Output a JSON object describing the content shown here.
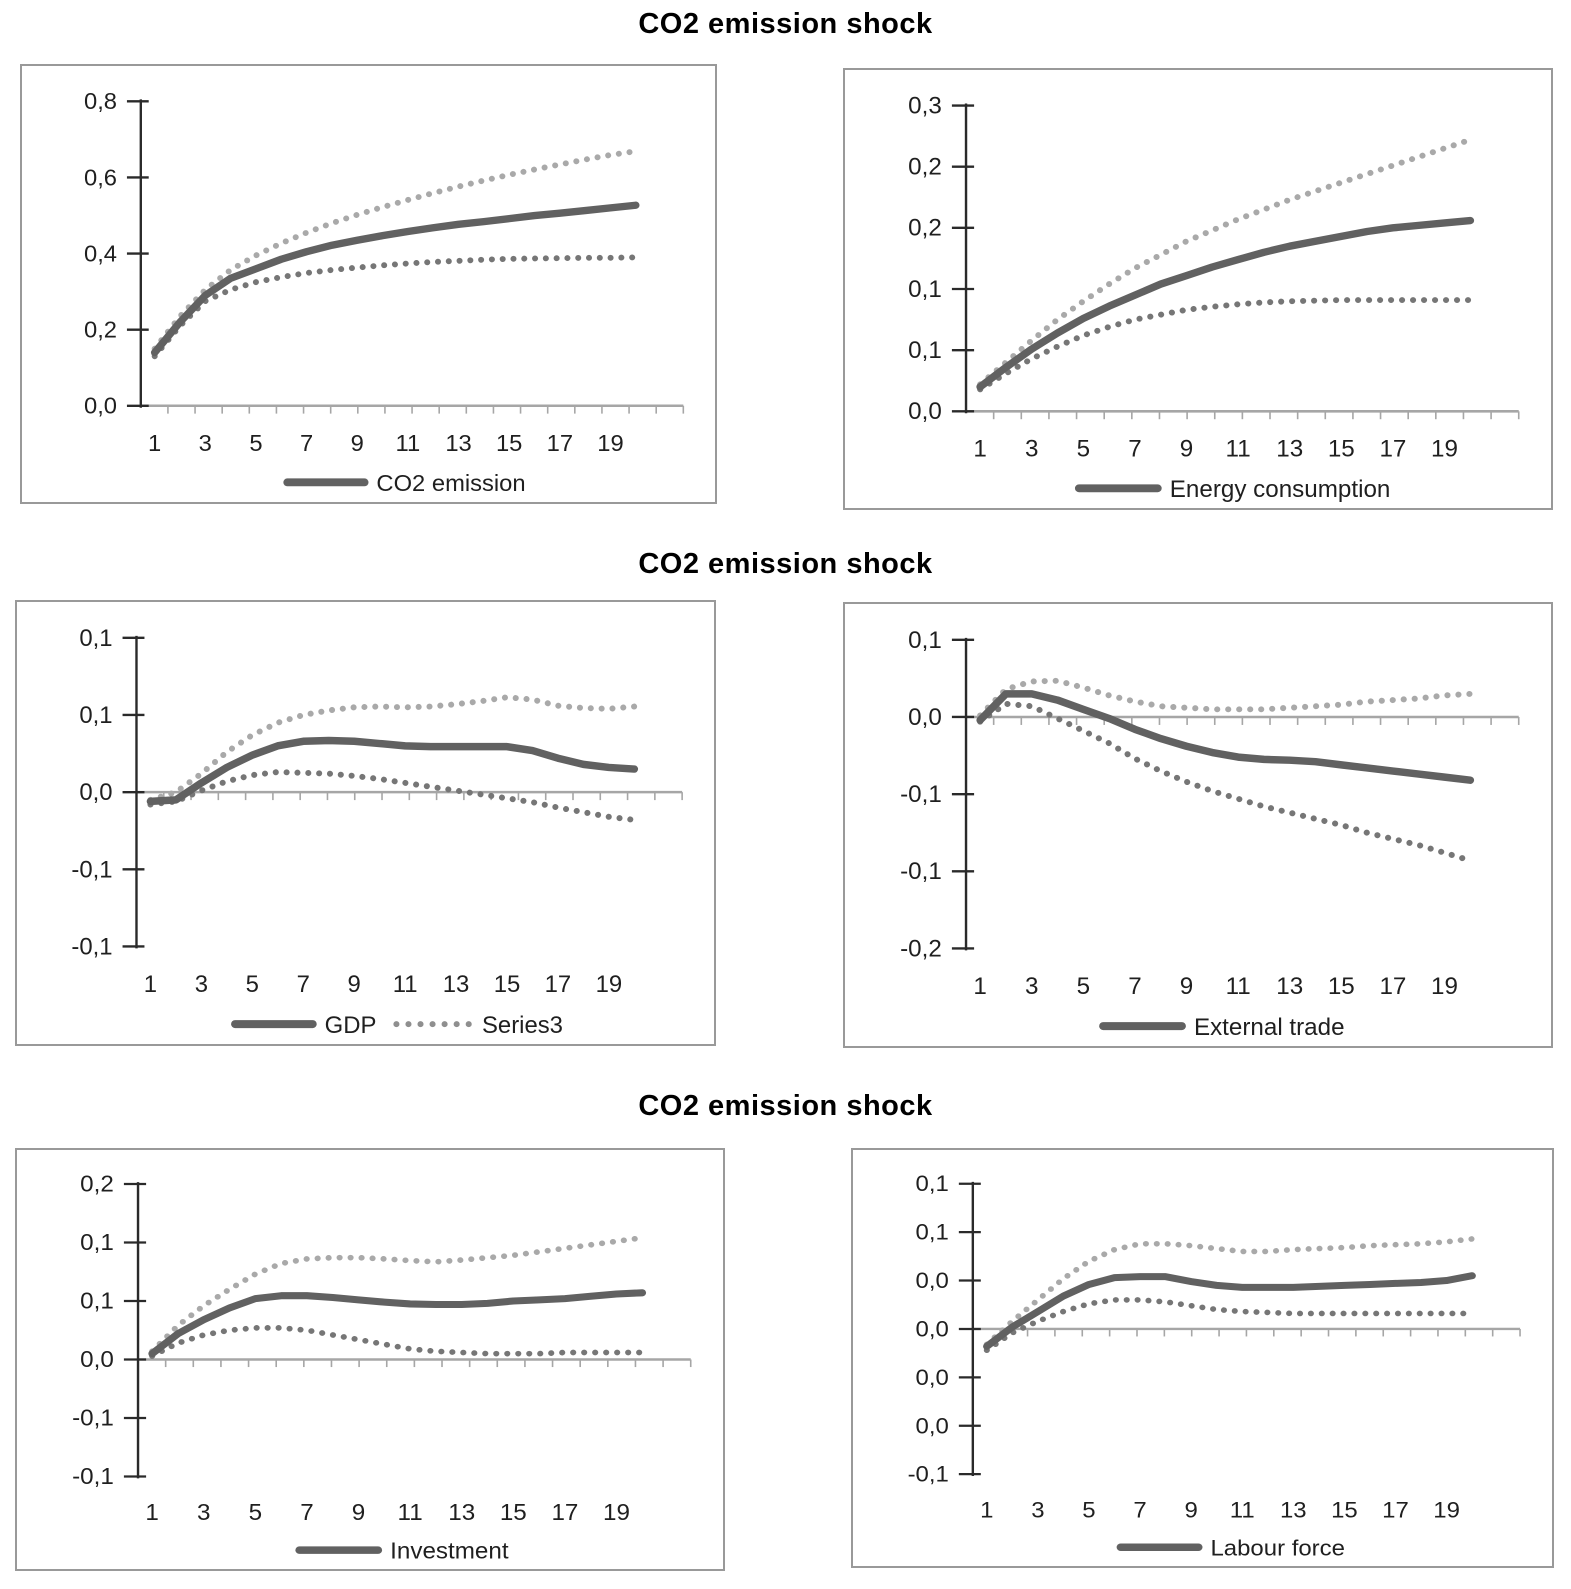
{
  "figure": {
    "background": "#ffffff"
  },
  "row_titles": [
    "CO2 emission shock",
    "CO2 emission shock",
    "CO2 emission shock"
  ],
  "colors": {
    "title_text": "#000000",
    "axis_text": "#1f1f1f",
    "y_axis_line": "#2a2a2a",
    "category_axis_line": "#a6a6a6",
    "panel_border": "#999999",
    "solid_series": "#616161",
    "upper_band": "#a9a9a9",
    "lower_band": "#767676",
    "legend_dotted_marker": "#8f8f8f"
  },
  "x_categories": [
    1,
    2,
    3,
    4,
    5,
    6,
    7,
    8,
    9,
    10,
    11,
    12,
    13,
    14,
    15,
    16,
    17,
    18,
    19,
    20
  ],
  "x_tick_labels": [
    "1",
    "3",
    "5",
    "7",
    "9",
    "11",
    "13",
    "15",
    "17",
    "19"
  ],
  "chart_data": [
    {
      "type": "line",
      "panel": "top-left",
      "row_title": "CO2 emission shock",
      "legend": [
        {
          "label": "CO2 emission",
          "marker": "solid"
        }
      ],
      "y_tick_labels": [
        "0,8",
        "0,6",
        "0,4",
        "0,2",
        "0,0"
      ],
      "y_tick_values": [
        0.8,
        0.6,
        0.4,
        0.2,
        0.0
      ],
      "ylim": [
        0.0,
        0.8
      ],
      "grid": false,
      "legend_position": "bottom",
      "series": [
        {
          "name": "CO2 emission",
          "role": "mean",
          "style": "solid",
          "values": [
            0.14,
            0.22,
            0.29,
            0.335,
            0.36,
            0.385,
            0.405,
            0.422,
            0.435,
            0.447,
            0.458,
            0.468,
            0.477,
            0.484,
            0.492,
            0.5,
            0.506,
            0.513,
            0.52,
            0.527
          ]
        },
        {
          "name": "upper confidence band",
          "role": "upper",
          "style": "dotted",
          "values": [
            0.15,
            0.235,
            0.305,
            0.357,
            0.395,
            0.427,
            0.455,
            0.48,
            0.502,
            0.522,
            0.541,
            0.559,
            0.576,
            0.592,
            0.607,
            0.621,
            0.634,
            0.647,
            0.659,
            0.669
          ]
        },
        {
          "name": "lower confidence band",
          "role": "lower",
          "style": "dotted",
          "values": [
            0.13,
            0.21,
            0.275,
            0.305,
            0.325,
            0.338,
            0.349,
            0.357,
            0.363,
            0.369,
            0.374,
            0.378,
            0.381,
            0.384,
            0.386,
            0.387,
            0.388,
            0.389,
            0.389,
            0.39
          ]
        }
      ]
    },
    {
      "type": "line",
      "panel": "top-right",
      "row_title": "CO2 emission shock",
      "legend": [
        {
          "label": "Energy consumption",
          "marker": "solid"
        }
      ],
      "y_tick_labels": [
        "0,3",
        "0,2",
        "0,2",
        "0,1",
        "0,1",
        "0,0"
      ],
      "y_tick_values": [
        0.25,
        0.2,
        0.15,
        0.1,
        0.05,
        0.0
      ],
      "ylim": [
        0.0,
        0.25
      ],
      "grid": false,
      "legend_position": "bottom",
      "series": [
        {
          "name": "Energy consumption",
          "role": "mean",
          "style": "solid",
          "values": [
            0.02,
            0.036,
            0.051,
            0.064,
            0.076,
            0.086,
            0.095,
            0.104,
            0.111,
            0.118,
            0.124,
            0.13,
            0.135,
            0.139,
            0.143,
            0.147,
            0.15,
            0.152,
            0.154,
            0.156
          ]
        },
        {
          "name": "upper confidence band",
          "role": "upper",
          "style": "dotted",
          "values": [
            0.022,
            0.04,
            0.058,
            0.075,
            0.09,
            0.104,
            0.117,
            0.128,
            0.139,
            0.148,
            0.157,
            0.165,
            0.173,
            0.18,
            0.187,
            0.194,
            0.201,
            0.208,
            0.215,
            0.222
          ]
        },
        {
          "name": "lower confidence band",
          "role": "lower",
          "style": "dotted",
          "values": [
            0.018,
            0.031,
            0.043,
            0.053,
            0.062,
            0.069,
            0.075,
            0.079,
            0.083,
            0.0855,
            0.0875,
            0.089,
            0.09,
            0.0905,
            0.091,
            0.091,
            0.091,
            0.091,
            0.091,
            0.091
          ]
        }
      ]
    },
    {
      "type": "line",
      "panel": "middle-left",
      "row_title": "CO2 emission shock",
      "legend": [
        {
          "label": "GDP",
          "marker": "solid"
        },
        {
          "label": "Series3",
          "marker": "dotted"
        }
      ],
      "y_tick_labels": [
        "0,1",
        "0,1",
        "0,0",
        "-0,1",
        "-0,1"
      ],
      "y_tick_values": [
        0.1,
        0.05,
        0.0,
        -0.05,
        -0.1
      ],
      "ylim": [
        -0.1,
        0.1
      ],
      "grid": false,
      "legend_position": "bottom",
      "series": [
        {
          "name": "GDP",
          "role": "mean",
          "style": "solid",
          "values": [
            -0.006,
            -0.005,
            0.006,
            0.016,
            0.024,
            0.03,
            0.033,
            0.0335,
            0.033,
            0.0315,
            0.03,
            0.0295,
            0.0295,
            0.0295,
            0.0295,
            0.027,
            0.022,
            0.018,
            0.016,
            0.015
          ]
        },
        {
          "name": "upper confidence band",
          "role": "upper",
          "style": "dotted",
          "values": [
            -0.005,
            0.0,
            0.012,
            0.026,
            0.037,
            0.045,
            0.05,
            0.053,
            0.055,
            0.0555,
            0.055,
            0.0555,
            0.057,
            0.059,
            0.0615,
            0.06,
            0.056,
            0.0545,
            0.054,
            0.0555
          ]
        },
        {
          "name": "Series3 (lower confidence band)",
          "role": "lower",
          "style": "dotted",
          "values": [
            -0.008,
            -0.006,
            0.001,
            0.007,
            0.011,
            0.013,
            0.0125,
            0.012,
            0.0105,
            0.0085,
            0.006,
            0.0035,
            0.001,
            -0.0015,
            -0.004,
            -0.0065,
            -0.01,
            -0.013,
            -0.016,
            -0.018
          ]
        }
      ]
    },
    {
      "type": "line",
      "panel": "middle-right",
      "row_title": "CO2 emission shock",
      "legend": [
        {
          "label": "External trade",
          "marker": "solid"
        }
      ],
      "y_tick_labels": [
        "0,1",
        "0,0",
        "-0,1",
        "-0,1",
        "-0,2"
      ],
      "y_tick_values": [
        0.05,
        0.0,
        -0.05,
        -0.1,
        -0.15
      ],
      "ylim": [
        -0.15,
        0.05
      ],
      "grid": false,
      "legend_position": "bottom",
      "series": [
        {
          "name": "External trade",
          "role": "mean",
          "style": "solid",
          "values": [
            -0.002,
            0.015,
            0.015,
            0.011,
            0.005,
            -0.001,
            -0.008,
            -0.014,
            -0.019,
            -0.023,
            -0.026,
            -0.0275,
            -0.028,
            -0.029,
            -0.031,
            -0.033,
            -0.035,
            -0.037,
            -0.039,
            -0.041
          ]
        },
        {
          "name": "upper confidence band",
          "role": "upper",
          "style": "dotted",
          "values": [
            0.001,
            0.018,
            0.023,
            0.0235,
            0.019,
            0.014,
            0.01,
            0.007,
            0.006,
            0.005,
            0.005,
            0.005,
            0.006,
            0.007,
            0.008,
            0.01,
            0.011,
            0.012,
            0.014,
            0.015
          ]
        },
        {
          "name": "lower confidence band",
          "role": "lower",
          "style": "dotted",
          "values": [
            -0.003,
            0.0085,
            0.007,
            -0.001,
            -0.009,
            -0.017,
            -0.027,
            -0.035,
            -0.042,
            -0.048,
            -0.053,
            -0.058,
            -0.062,
            -0.066,
            -0.07,
            -0.075,
            -0.079,
            -0.083,
            -0.088,
            -0.093
          ]
        }
      ]
    },
    {
      "type": "line",
      "panel": "bottom-left",
      "row_title": "CO2 emission shock",
      "legend": [
        {
          "label": "Investment",
          "marker": "solid"
        }
      ],
      "y_tick_labels": [
        "0,2",
        "0,1",
        "0,1",
        "0,0",
        "-0,1",
        "-0,1"
      ],
      "y_tick_values": [
        0.15,
        0.1,
        0.05,
        0.0,
        -0.05,
        -0.1
      ],
      "ylim": [
        -0.1,
        0.15
      ],
      "grid": false,
      "legend_position": "bottom",
      "series": [
        {
          "name": "Investment",
          "role": "mean",
          "style": "solid",
          "values": [
            0.005,
            0.022,
            0.034,
            0.044,
            0.052,
            0.0545,
            0.0545,
            0.053,
            0.051,
            0.049,
            0.0475,
            0.047,
            0.047,
            0.048,
            0.05,
            0.051,
            0.052,
            0.054,
            0.056,
            0.057
          ]
        },
        {
          "name": "upper confidence band",
          "role": "upper",
          "style": "dotted",
          "values": [
            0.007,
            0.029,
            0.046,
            0.06,
            0.073,
            0.082,
            0.086,
            0.087,
            0.087,
            0.086,
            0.0845,
            0.0835,
            0.085,
            0.087,
            0.089,
            0.092,
            0.095,
            0.098,
            0.101,
            0.104
          ]
        },
        {
          "name": "lower confidence band",
          "role": "lower",
          "style": "dotted",
          "values": [
            0.003,
            0.014,
            0.021,
            0.025,
            0.027,
            0.027,
            0.025,
            0.021,
            0.017,
            0.013,
            0.009,
            0.007,
            0.006,
            0.005,
            0.005,
            0.005,
            0.006,
            0.006,
            0.006,
            0.006
          ]
        }
      ]
    },
    {
      "type": "line",
      "panel": "bottom-right",
      "row_title": "CO2 emission shock",
      "legend": [
        {
          "label": "Labour force",
          "marker": "solid"
        }
      ],
      "y_tick_labels": [
        "0,1",
        "0,1",
        "0,0",
        "0,0",
        "0,0",
        "0,0",
        "-0,1"
      ],
      "y_tick_values": [
        0.075,
        0.05,
        0.025,
        0.0,
        -0.025,
        -0.05,
        -0.075
      ],
      "ylim": [
        -0.075,
        0.075
      ],
      "grid": false,
      "legend_position": "bottom",
      "series": [
        {
          "name": "Labour force",
          "role": "mean",
          "style": "solid",
          "values": [
            -0.009,
            0.001,
            0.009,
            0.017,
            0.023,
            0.0265,
            0.027,
            0.027,
            0.0245,
            0.0225,
            0.0215,
            0.0215,
            0.0215,
            0.022,
            0.0225,
            0.023,
            0.0235,
            0.024,
            0.025,
            0.0275
          ]
        },
        {
          "name": "upper confidence band",
          "role": "upper",
          "style": "dotted",
          "values": [
            -0.008,
            0.004,
            0.015,
            0.026,
            0.035,
            0.041,
            0.044,
            0.044,
            0.043,
            0.0415,
            0.04,
            0.04,
            0.041,
            0.0415,
            0.042,
            0.043,
            0.0435,
            0.044,
            0.045,
            0.0465
          ]
        },
        {
          "name": "lower confidence band",
          "role": "lower",
          "style": "dotted",
          "values": [
            -0.011,
            -0.002,
            0.004,
            0.009,
            0.013,
            0.015,
            0.015,
            0.014,
            0.012,
            0.01,
            0.009,
            0.0085,
            0.008,
            0.008,
            0.008,
            0.008,
            0.008,
            0.008,
            0.008,
            0.008
          ]
        }
      ]
    }
  ]
}
